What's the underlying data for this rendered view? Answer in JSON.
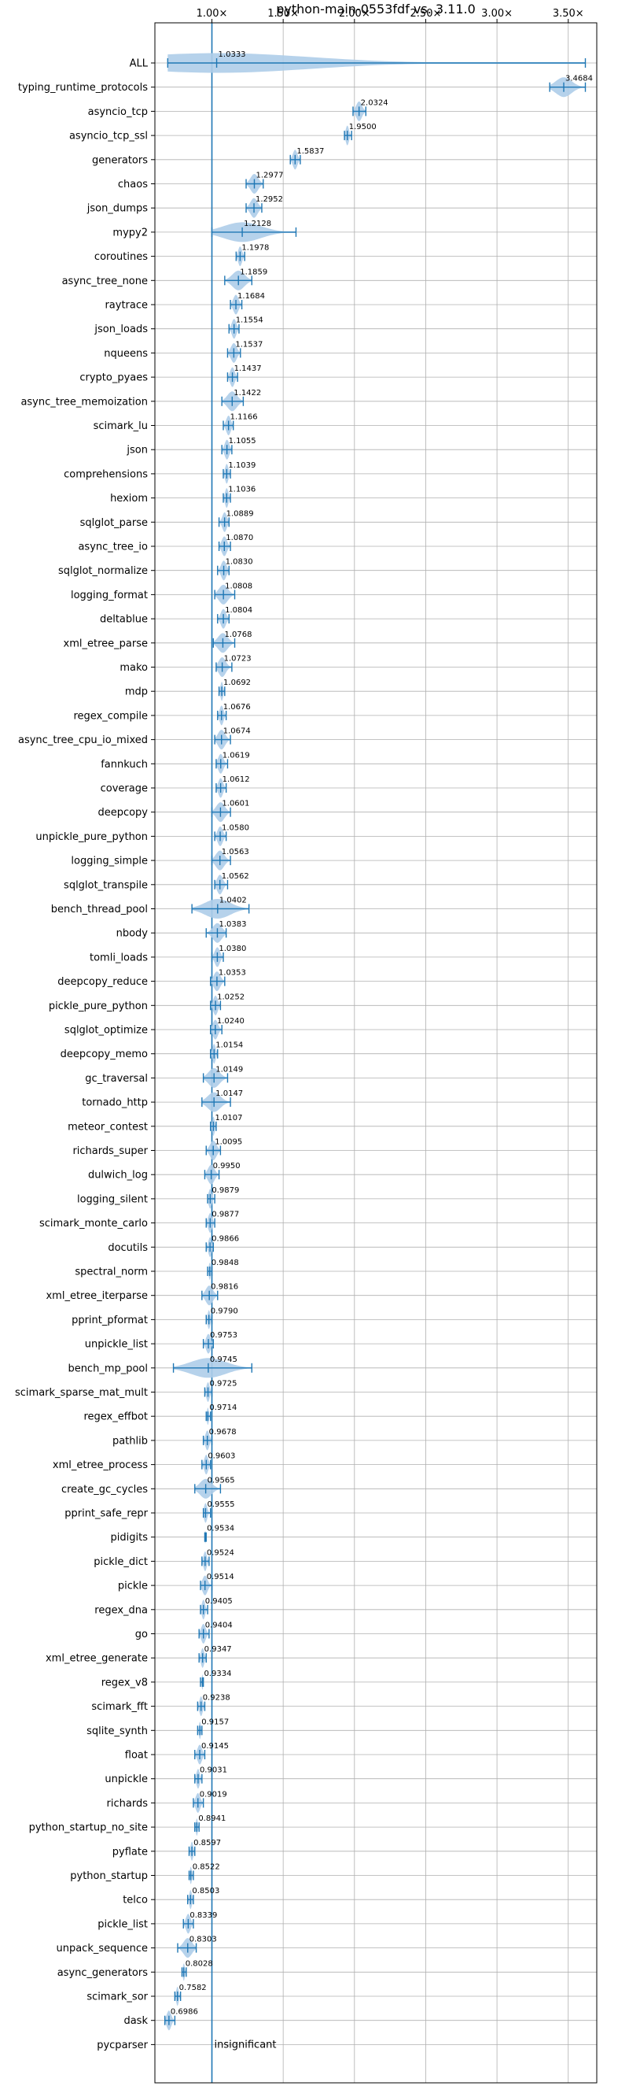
{
  "chart_data": {
    "type": "violin",
    "title": "python-main-0553fdf vs. 3.11.0",
    "xlabel": "",
    "ylabel": "",
    "xlim": [
      0.6,
      3.7
    ],
    "x_ticks": [
      1.0,
      1.5,
      2.0,
      2.5,
      3.0,
      3.5
    ],
    "x_tick_labels": [
      "1.00×",
      "1.50×",
      "2.00×",
      "2.50×",
      "3.00×",
      "3.50×"
    ],
    "grid": true,
    "reference_line": 1.0,
    "categories": [
      "ALL",
      "typing_runtime_protocols",
      "asyncio_tcp",
      "asyncio_tcp_ssl",
      "generators",
      "chaos",
      "json_dumps",
      "mypy2",
      "coroutines",
      "async_tree_none",
      "raytrace",
      "json_loads",
      "nqueens",
      "crypto_pyaes",
      "async_tree_memoization",
      "scimark_lu",
      "json",
      "comprehensions",
      "hexiom",
      "sqlglot_parse",
      "async_tree_io",
      "sqlglot_normalize",
      "logging_format",
      "deltablue",
      "xml_etree_parse",
      "mako",
      "mdp",
      "regex_compile",
      "async_tree_cpu_io_mixed",
      "fannkuch",
      "coverage",
      "deepcopy",
      "unpickle_pure_python",
      "logging_simple",
      "sqlglot_transpile",
      "bench_thread_pool",
      "nbody",
      "tomli_loads",
      "deepcopy_reduce",
      "pickle_pure_python",
      "sqlglot_optimize",
      "deepcopy_memo",
      "gc_traversal",
      "tornado_http",
      "meteor_contest",
      "richards_super",
      "dulwich_log",
      "logging_silent",
      "scimark_monte_carlo",
      "docutils",
      "spectral_norm",
      "xml_etree_iterparse",
      "pprint_pformat",
      "unpickle_list",
      "bench_mp_pool",
      "scimark_sparse_mat_mult",
      "regex_effbot",
      "pathlib",
      "xml_etree_process",
      "create_gc_cycles",
      "pprint_safe_repr",
      "pidigits",
      "pickle_dict",
      "pickle",
      "regex_dna",
      "go",
      "xml_etree_generate",
      "regex_v8",
      "scimark_fft",
      "sqlite_synth",
      "float",
      "unpickle",
      "richards",
      "python_startup_no_site",
      "pyflate",
      "python_startup",
      "telco",
      "pickle_list",
      "unpack_sequence",
      "async_generators",
      "scimark_sor",
      "dask",
      "pycparser"
    ],
    "values": [
      1.0333,
      3.4684,
      2.0324,
      1.95,
      1.5837,
      1.2977,
      1.2952,
      1.2128,
      1.1978,
      1.1859,
      1.1684,
      1.1554,
      1.1537,
      1.1437,
      1.1422,
      1.1166,
      1.1055,
      1.1039,
      1.1036,
      1.0889,
      1.087,
      1.083,
      1.0808,
      1.0804,
      1.0768,
      1.0723,
      1.0692,
      1.0676,
      1.0674,
      1.0619,
      1.0612,
      1.0601,
      1.058,
      1.0563,
      1.0562,
      1.0402,
      1.0383,
      1.038,
      1.0353,
      1.0252,
      1.024,
      1.0154,
      1.0149,
      1.0147,
      1.0107,
      1.0095,
      0.995,
      0.9879,
      0.9877,
      0.9866,
      0.9848,
      0.9816,
      0.979,
      0.9753,
      0.9745,
      0.9725,
      0.9714,
      0.9678,
      0.9603,
      0.9565,
      0.9555,
      0.9534,
      0.9524,
      0.9514,
      0.9405,
      0.9404,
      0.9347,
      0.9334,
      0.9238,
      0.9157,
      0.9145,
      0.9031,
      0.9019,
      0.8941,
      0.8597,
      0.8522,
      0.8503,
      0.8339,
      0.8303,
      0.8028,
      0.7582,
      0.6986,
      null
    ],
    "value_labels": [
      "1.0333",
      "3.4684",
      "2.0324",
      "1.9500",
      "1.5837",
      "1.2977",
      "1.2952",
      "1.2128",
      "1.1978",
      "1.1859",
      "1.1684",
      "1.1554",
      "1.1537",
      "1.1437",
      "1.1422",
      "1.1166",
      "1.1055",
      "1.1039",
      "1.1036",
      "1.0889",
      "1.0870",
      "1.0830",
      "1.0808",
      "1.0804",
      "1.0768",
      "1.0723",
      "1.0692",
      "1.0676",
      "1.0674",
      "1.0619",
      "1.0612",
      "1.0601",
      "1.0580",
      "1.0563",
      "1.0562",
      "1.0402",
      "1.0383",
      "1.0380",
      "1.0353",
      "1.0252",
      "1.0240",
      "1.0154",
      "1.0149",
      "1.0147",
      "1.0107",
      "1.0095",
      "0.9950",
      "0.9879",
      "0.9877",
      "0.9866",
      "0.9848",
      "0.9816",
      "0.9790",
      "0.9753",
      "0.9745",
      "0.9725",
      "0.9714",
      "0.9678",
      "0.9603",
      "0.9565",
      "0.9555",
      "0.9534",
      "0.9524",
      "0.9514",
      "0.9405",
      "0.9404",
      "0.9347",
      "0.9334",
      "0.9238",
      "0.9157",
      "0.9145",
      "0.9031",
      "0.9019",
      "0.8941",
      "0.8597",
      "0.8522",
      "0.8503",
      "0.8339",
      "0.8303",
      "0.8028",
      "0.7582",
      "0.6986",
      ""
    ],
    "ranges": [
      [
        0.69,
        3.62
      ],
      [
        3.37,
        3.62
      ],
      [
        1.99,
        2.08
      ],
      [
        1.93,
        1.98
      ],
      [
        1.55,
        1.62
      ],
      [
        1.24,
        1.36
      ],
      [
        1.24,
        1.35
      ],
      [
        1.0,
        1.59
      ],
      [
        1.17,
        1.23
      ],
      [
        1.09,
        1.28
      ],
      [
        1.13,
        1.21
      ],
      [
        1.12,
        1.19
      ],
      [
        1.11,
        1.2
      ],
      [
        1.11,
        1.18
      ],
      [
        1.07,
        1.22
      ],
      [
        1.08,
        1.15
      ],
      [
        1.07,
        1.14
      ],
      [
        1.08,
        1.13
      ],
      [
        1.08,
        1.13
      ],
      [
        1.05,
        1.12
      ],
      [
        1.05,
        1.13
      ],
      [
        1.04,
        1.12
      ],
      [
        1.02,
        1.16
      ],
      [
        1.04,
        1.12
      ],
      [
        1.01,
        1.16
      ],
      [
        1.03,
        1.14
      ],
      [
        1.05,
        1.09
      ],
      [
        1.04,
        1.1
      ],
      [
        1.02,
        1.13
      ],
      [
        1.03,
        1.11
      ],
      [
        1.03,
        1.1
      ],
      [
        1.0,
        1.13
      ],
      [
        1.02,
        1.1
      ],
      [
        1.0,
        1.13
      ],
      [
        1.02,
        1.11
      ],
      [
        0.86,
        1.26
      ],
      [
        0.96,
        1.1
      ],
      [
        1.0,
        1.08
      ],
      [
        0.99,
        1.09
      ],
      [
        0.99,
        1.06
      ],
      [
        0.99,
        1.07
      ],
      [
        0.99,
        1.04
      ],
      [
        0.94,
        1.11
      ],
      [
        0.93,
        1.13
      ],
      [
        0.99,
        1.03
      ],
      [
        0.96,
        1.06
      ],
      [
        0.95,
        1.05
      ],
      [
        0.97,
        1.02
      ],
      [
        0.96,
        1.02
      ],
      [
        0.96,
        1.01
      ],
      [
        0.97,
        1.0
      ],
      [
        0.93,
        1.04
      ],
      [
        0.96,
        1.0
      ],
      [
        0.94,
        1.01
      ],
      [
        0.73,
        1.28
      ],
      [
        0.95,
        1.0
      ],
      [
        0.96,
        0.99
      ],
      [
        0.94,
        1.0
      ],
      [
        0.93,
        0.99
      ],
      [
        0.88,
        1.06
      ],
      [
        0.94,
        0.99
      ],
      [
        0.95,
        0.96
      ],
      [
        0.93,
        0.98
      ],
      [
        0.92,
        1.0
      ],
      [
        0.92,
        0.97
      ],
      [
        0.91,
        0.98
      ],
      [
        0.91,
        0.96
      ],
      [
        0.92,
        0.94
      ],
      [
        0.9,
        0.95
      ],
      [
        0.9,
        0.93
      ],
      [
        0.88,
        0.95
      ],
      [
        0.88,
        0.93
      ],
      [
        0.87,
        0.94
      ],
      [
        0.88,
        0.91
      ],
      [
        0.84,
        0.88
      ],
      [
        0.84,
        0.87
      ],
      [
        0.83,
        0.87
      ],
      [
        0.8,
        0.87
      ],
      [
        0.76,
        0.89
      ],
      [
        0.79,
        0.82
      ],
      [
        0.74,
        0.78
      ],
      [
        0.67,
        0.74
      ],
      null
    ],
    "annotations": [
      {
        "category": "pycparser",
        "text": "insignificant"
      }
    ],
    "colors": {
      "violin_fill": "#aecde9",
      "violin_line": "#1f77b4",
      "grid": "#b0b0b0",
      "axis": "#000000"
    }
  }
}
